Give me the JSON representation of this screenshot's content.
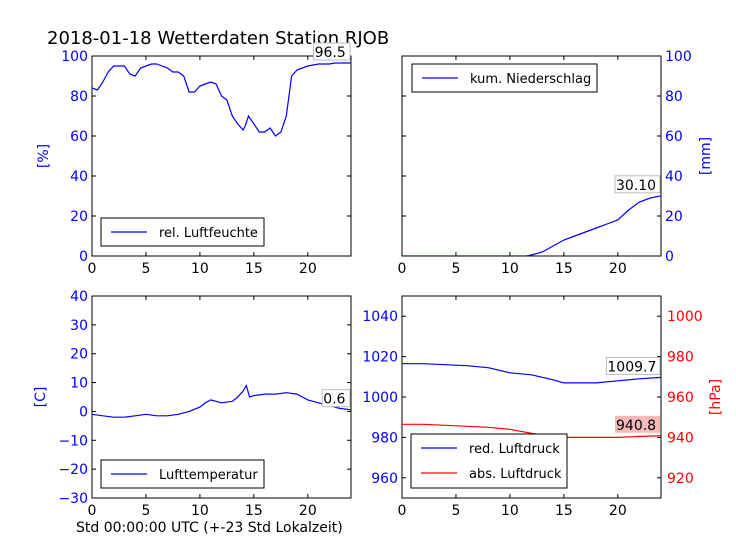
{
  "title": "2018-01-18 Wetterdaten Station RJOB",
  "xlabel": "Std 00:00:00 UTC (+-23 Std Lokalzeit)",
  "colors": {
    "blue": "#0000ff",
    "red": "#ff0000",
    "axis": "#000000"
  },
  "chart_data": [
    {
      "id": "humidity",
      "type": "line",
      "ylabel": "[%]",
      "xlim": [
        0,
        24
      ],
      "ylim": [
        0,
        100
      ],
      "xticks": [
        0,
        5,
        10,
        15,
        20
      ],
      "yticks": [
        0,
        20,
        40,
        60,
        80,
        100
      ],
      "legend": {
        "label": "rel. Luftfeuchte",
        "placement": "bottom-left"
      },
      "annotation": "96.5",
      "series": [
        {
          "color": "#0000ff",
          "x": [
            0,
            0.5,
            1,
            1.5,
            2,
            2.5,
            3,
            3.5,
            4,
            4.5,
            5,
            5.5,
            6,
            6.5,
            7,
            7.5,
            8,
            8.5,
            9,
            9.5,
            10,
            10.5,
            11,
            11.5,
            12,
            12.5,
            13,
            13.5,
            14,
            14.2,
            14.5,
            15,
            15.5,
            16,
            16.5,
            17,
            17.5,
            18,
            18.5,
            19,
            19.5,
            20,
            20.5,
            21,
            21.5,
            22,
            22.5,
            23,
            23.5,
            24
          ],
          "y": [
            84,
            83,
            87,
            92,
            95,
            95,
            95,
            91,
            90,
            94,
            95,
            96,
            96,
            95,
            94,
            92,
            92,
            90,
            82,
            82,
            85,
            86,
            87,
            86,
            80,
            78,
            70,
            66,
            63,
            65,
            70,
            66,
            62,
            62,
            64,
            60,
            62,
            70,
            90,
            93,
            94,
            95,
            95.5,
            96,
            96,
            96,
            96.5,
            96.5,
            96.5,
            96.5
          ]
        }
      ]
    },
    {
      "id": "precipitation",
      "type": "line",
      "ylabel": "[mm]",
      "xlim": [
        0,
        24
      ],
      "ylim": [
        0,
        100
      ],
      "xticks": [
        0,
        5,
        10,
        15,
        20
      ],
      "yticks": [
        0,
        20,
        40,
        60,
        80,
        100
      ],
      "legend": {
        "label": "kum. Niederschlag",
        "placement": "top-left"
      },
      "annotation": "30.10",
      "series": [
        {
          "color": "#0000ff",
          "x": [
            0,
            10,
            11.5,
            12,
            13,
            14,
            15,
            16,
            17,
            18,
            19,
            20,
            21,
            22,
            23,
            24
          ],
          "y": [
            0,
            0,
            0,
            0.5,
            2,
            5,
            8,
            10,
            12,
            14,
            16,
            18,
            23,
            27,
            29,
            30.1
          ]
        }
      ]
    },
    {
      "id": "temperature",
      "type": "line",
      "ylabel": "[C]",
      "xlim": [
        0,
        24
      ],
      "ylim": [
        -30,
        40
      ],
      "xticks": [
        0,
        5,
        10,
        15,
        20
      ],
      "yticks": [
        -30,
        -20,
        -10,
        0,
        10,
        20,
        30,
        40
      ],
      "legend": {
        "label": "Lufttemperatur",
        "placement": "bottom-left"
      },
      "annotation": "0.6",
      "series": [
        {
          "color": "#0000ff",
          "x": [
            0,
            1,
            2,
            3,
            4,
            5,
            6,
            7,
            8,
            9,
            10,
            10.5,
            11,
            12,
            13,
            13.5,
            14,
            14.3,
            14.6,
            15,
            16,
            17,
            18,
            19,
            20,
            21,
            22,
            23,
            24
          ],
          "y": [
            -1,
            -1.5,
            -2,
            -2,
            -1.5,
            -1,
            -1.5,
            -1.5,
            -1,
            0,
            1.5,
            3,
            4,
            3,
            3.5,
            5,
            7,
            9,
            5,
            5.5,
            6,
            6,
            6.5,
            6,
            4,
            3,
            2,
            1,
            0.6
          ]
        }
      ]
    },
    {
      "id": "pressure",
      "type": "line",
      "ylabel": "[hPa]",
      "xlim": [
        0,
        24
      ],
      "ylim": [
        950,
        1050
      ],
      "ylim_right": [
        910,
        1010
      ],
      "xticks": [
        0,
        5,
        10,
        15,
        20
      ],
      "yticks": [
        960,
        980,
        1000,
        1020,
        1040
      ],
      "yticks_right": [
        920,
        940,
        960,
        980,
        1000
      ],
      "legend": {
        "labels": [
          "red. Luftdruck",
          "abs. Luftdruck"
        ],
        "placement": "bottom-left"
      },
      "annotations": [
        "1009.7",
        "940.8"
      ],
      "series": [
        {
          "name": "red. Luftdruck",
          "color": "#0000ff",
          "axis": "left",
          "x": [
            0,
            2,
            4,
            6,
            8,
            10,
            12,
            14,
            15,
            16,
            18,
            20,
            22,
            24
          ],
          "y": [
            1016.5,
            1016.5,
            1016,
            1015.5,
            1014.5,
            1012,
            1011,
            1008.5,
            1007,
            1007,
            1007,
            1008,
            1009,
            1009.7
          ]
        },
        {
          "name": "abs. Luftdruck",
          "color": "#ff0000",
          "axis": "right",
          "x": [
            0,
            2,
            4,
            6,
            8,
            10,
            12,
            14,
            15,
            16,
            18,
            20,
            22,
            24
          ],
          "y": [
            946.5,
            946.5,
            946,
            945.5,
            945,
            944,
            942,
            940.5,
            940,
            940,
            940,
            940,
            940.5,
            940.8
          ]
        }
      ]
    }
  ]
}
